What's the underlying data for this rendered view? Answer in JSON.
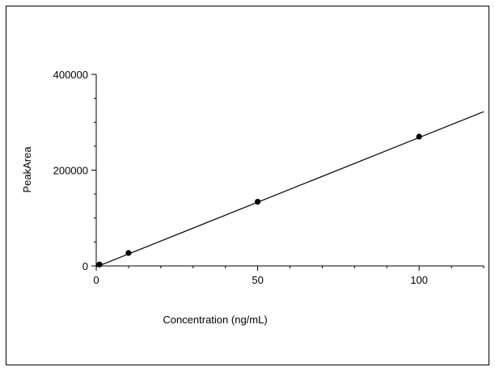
{
  "chart_data": {
    "type": "scatter",
    "title": "",
    "xlabel": "Concentration (ng/mL)",
    "ylabel": "PeakArea",
    "xlim": [
      0,
      120
    ],
    "ylim": [
      0,
      400000
    ],
    "x_ticks": [
      0,
      50,
      100
    ],
    "y_ticks": [
      0,
      200000,
      400000
    ],
    "x_tick_labels": [
      "0",
      "50",
      "100"
    ],
    "y_tick_labels": [
      "0",
      "200000",
      "400000"
    ],
    "grid": false,
    "legend": "none",
    "series": [
      {
        "type": "scatter",
        "x": [
          1,
          10,
          50,
          100
        ],
        "y": [
          3000,
          27000,
          134000,
          270000
        ]
      },
      {
        "type": "line",
        "x": [
          0,
          120
        ],
        "y": [
          -2000,
          322000
        ]
      }
    ],
    "colors": {
      "marks": "#000000",
      "axes": "#000000"
    }
  }
}
